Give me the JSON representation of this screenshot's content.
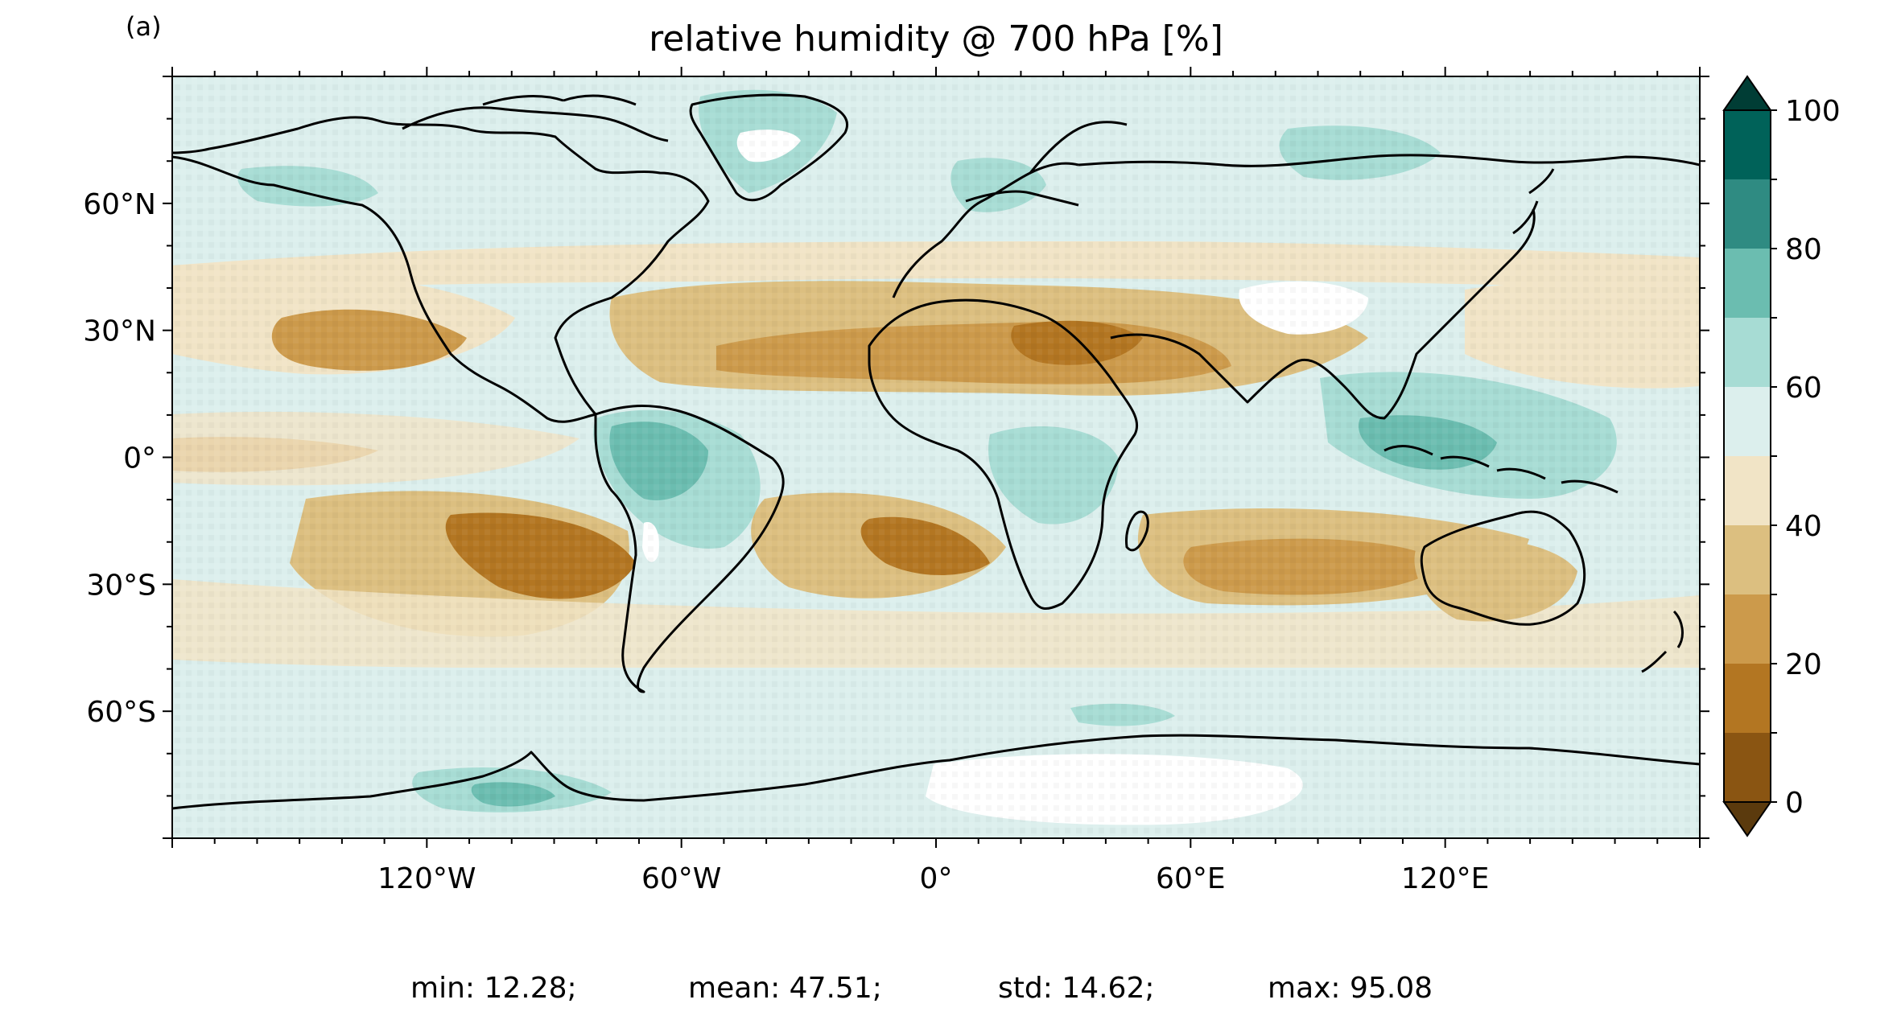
{
  "panel_label": "(a)",
  "title": "relative humidity @ 700 hPa [%]",
  "map": {
    "projection": "plate-carree",
    "coastline_color": "#000000",
    "ocean_and_land_field": "relative humidity",
    "x_ticks": [
      {
        "value": -120,
        "label": "120°W"
      },
      {
        "value": -60,
        "label": "60°W"
      },
      {
        "value": 0,
        "label": "0°"
      },
      {
        "value": 60,
        "label": "60°E"
      },
      {
        "value": 120,
        "label": "120°E"
      }
    ],
    "y_ticks": [
      {
        "value": 60,
        "label": "60°N"
      },
      {
        "value": 30,
        "label": "30°N"
      },
      {
        "value": 0,
        "label": "0°"
      },
      {
        "value": -30,
        "label": "30°S"
      },
      {
        "value": -60,
        "label": "60°S"
      }
    ],
    "x_range": [
      -180,
      180
    ],
    "y_range": [
      -90,
      90
    ],
    "missing_color": "#ffffff"
  },
  "colorbar": {
    "ticks": [
      {
        "value": 0,
        "label": "0"
      },
      {
        "value": 20,
        "label": "20"
      },
      {
        "value": 40,
        "label": "40"
      },
      {
        "value": 60,
        "label": "60"
      },
      {
        "value": 80,
        "label": "80"
      },
      {
        "value": 100,
        "label": "100"
      }
    ],
    "levels": [
      0,
      10,
      20,
      30,
      40,
      50,
      60,
      70,
      80,
      90,
      100
    ],
    "colors": [
      "#8a5512",
      "#b37622",
      "#cc9a4b",
      "#dcbf80",
      "#f1e4c6",
      "#dcefed",
      "#a7dcd4",
      "#6bbdb0",
      "#2f8b82",
      "#006259"
    ],
    "under_color": "#5b3a0d",
    "over_color": "#003d35",
    "extend": "both"
  },
  "stats": {
    "min": "min: 12.28;",
    "mean": "mean: 47.51;",
    "std": "std: 14.62;",
    "max": "max: 95.08"
  }
}
